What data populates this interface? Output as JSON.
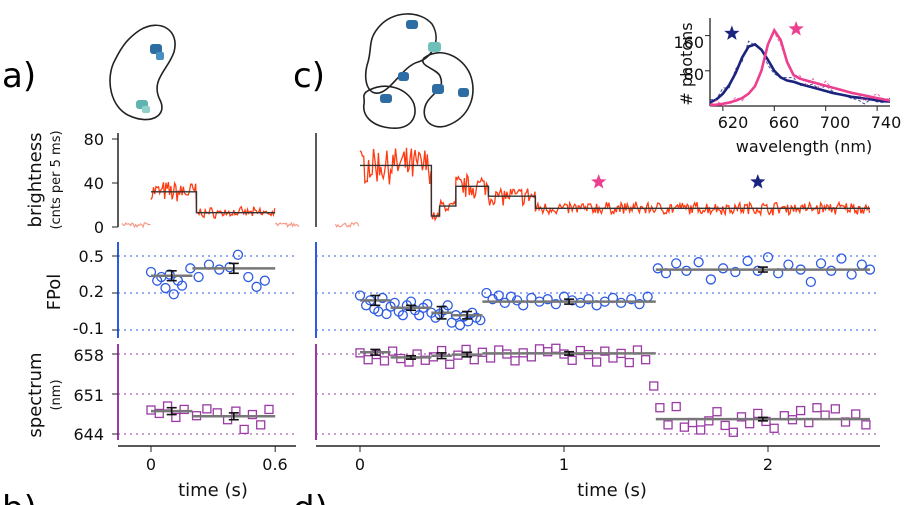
{
  "panel_labels": {
    "a": "a)",
    "b": "b)",
    "c": "c)",
    "d": "d)"
  },
  "colors": {
    "trace": "#ff3b12",
    "trace_faint": "#f59a8a",
    "fit": "#333333",
    "fpol": "#2d5be3",
    "spectrum": "#9b3aa5",
    "inset_blue": "#1a237e",
    "inset_pink": "#ec3f8f",
    "mean": "#777777"
  },
  "chart_data": [
    {
      "type": "line",
      "panel": "brightness",
      "ylabel": "brightness",
      "ylabel_sub": "(cnts per 5 ms)",
      "yticks": [
        "0",
        "40",
        "80"
      ],
      "ylim": [
        0,
        90
      ],
      "segments_a": [
        {
          "x": [
            0.0,
            0.22
          ],
          "y": 32
        },
        {
          "x": [
            0.22,
            0.6
          ],
          "y": 13
        }
      ],
      "segments_c": [
        {
          "x": [
            0.0,
            0.35
          ],
          "y": 56
        },
        {
          "x": [
            0.35,
            0.39
          ],
          "y": 10
        },
        {
          "x": [
            0.39,
            0.47
          ],
          "y": 19
        },
        {
          "x": [
            0.47,
            0.63
          ],
          "y": 37
        },
        {
          "x": [
            0.63,
            0.86
          ],
          "y": 28
        },
        {
          "x": [
            0.86,
            2.5
          ],
          "y": 17
        }
      ],
      "markers": [
        {
          "x": 1.17,
          "color": "inset_pink"
        },
        {
          "x": 1.95,
          "color": "inset_blue"
        }
      ]
    },
    {
      "type": "scatter",
      "panel": "FPol",
      "ylabel": "FPol",
      "yticks": [
        "-0.1",
        "0.2",
        "0.5"
      ],
      "ylim": [
        -0.1,
        0.5
      ],
      "points_a": [
        [
          0.0,
          0.37
        ],
        [
          0.03,
          0.3
        ],
        [
          0.05,
          0.33
        ],
        [
          0.07,
          0.24
        ],
        [
          0.09,
          0.35
        ],
        [
          0.11,
          0.19
        ],
        [
          0.13,
          0.3
        ],
        [
          0.15,
          0.26
        ],
        [
          0.19,
          0.4
        ],
        [
          0.23,
          0.33
        ],
        [
          0.28,
          0.43
        ],
        [
          0.33,
          0.39
        ],
        [
          0.38,
          0.41
        ],
        [
          0.42,
          0.51
        ],
        [
          0.47,
          0.33
        ],
        [
          0.51,
          0.25
        ],
        [
          0.55,
          0.3
        ]
      ],
      "means_a": [
        {
          "x": [
            0.0,
            0.2
          ],
          "y": 0.34,
          "err": 0.04
        },
        {
          "x": [
            0.2,
            0.6
          ],
          "y": 0.4,
          "err": 0.04
        }
      ],
      "points_c": [
        [
          0.0,
          0.18
        ],
        [
          0.03,
          0.1
        ],
        [
          0.05,
          0.14
        ],
        [
          0.07,
          0.07
        ],
        [
          0.09,
          0.05
        ],
        [
          0.11,
          0.16
        ],
        [
          0.13,
          0.03
        ],
        [
          0.15,
          0.09
        ],
        [
          0.17,
          0.12
        ],
        [
          0.19,
          0.05
        ],
        [
          0.21,
          0.02
        ],
        [
          0.23,
          0.1
        ],
        [
          0.25,
          0.13
        ],
        [
          0.27,
          0.06
        ],
        [
          0.29,
          0.02
        ],
        [
          0.31,
          0.08
        ],
        [
          0.33,
          0.11
        ],
        [
          0.35,
          0.04
        ],
        [
          0.37,
          0.0
        ],
        [
          0.39,
          0.03
        ],
        [
          0.41,
          0.06
        ],
        [
          0.43,
          0.1
        ],
        [
          0.45,
          -0.04
        ],
        [
          0.47,
          0.02
        ],
        [
          0.49,
          -0.06
        ],
        [
          0.51,
          0.01
        ],
        [
          0.53,
          -0.03
        ],
        [
          0.55,
          0.04
        ],
        [
          0.57,
          0.0
        ],
        [
          0.59,
          -0.02
        ],
        [
          0.62,
          0.2
        ],
        [
          0.65,
          0.15
        ],
        [
          0.68,
          0.18
        ],
        [
          0.71,
          0.12
        ],
        [
          0.74,
          0.17
        ],
        [
          0.77,
          0.14
        ],
        [
          0.8,
          0.1
        ],
        [
          0.84,
          0.16
        ],
        [
          0.88,
          0.13
        ],
        [
          0.92,
          0.15
        ],
        [
          0.96,
          0.11
        ],
        [
          1.0,
          0.17
        ],
        [
          1.04,
          0.14
        ],
        [
          1.08,
          0.12
        ],
        [
          1.12,
          0.15
        ],
        [
          1.16,
          0.1
        ],
        [
          1.2,
          0.13
        ],
        [
          1.24,
          0.16
        ],
        [
          1.28,
          0.12
        ],
        [
          1.33,
          0.15
        ],
        [
          1.37,
          0.11
        ],
        [
          1.41,
          0.17
        ],
        [
          1.46,
          0.4
        ],
        [
          1.5,
          0.36
        ],
        [
          1.55,
          0.44
        ],
        [
          1.6,
          0.38
        ],
        [
          1.66,
          0.45
        ],
        [
          1.72,
          0.31
        ],
        [
          1.78,
          0.4
        ],
        [
          1.84,
          0.37
        ],
        [
          1.9,
          0.46
        ],
        [
          1.95,
          0.38
        ],
        [
          2.0,
          0.49
        ],
        [
          2.05,
          0.36
        ],
        [
          2.1,
          0.43
        ],
        [
          2.16,
          0.39
        ],
        [
          2.21,
          0.29
        ],
        [
          2.26,
          0.44
        ],
        [
          2.31,
          0.38
        ],
        [
          2.36,
          0.48
        ],
        [
          2.41,
          0.35
        ],
        [
          2.46,
          0.43
        ],
        [
          2.5,
          0.39
        ]
      ],
      "means_c": [
        {
          "x": [
            0.0,
            0.15
          ],
          "y": 0.14,
          "err": 0.04
        },
        {
          "x": [
            0.15,
            0.35
          ],
          "y": 0.08,
          "err": 0.02
        },
        {
          "x": [
            0.35,
            0.45
          ],
          "y": 0.04,
          "err": 0.05
        },
        {
          "x": [
            0.45,
            0.6
          ],
          "y": 0.02,
          "err": 0.03
        },
        {
          "x": [
            0.6,
            1.45
          ],
          "y": 0.13,
          "err": 0.02
        },
        {
          "x": [
            1.45,
            2.5
          ],
          "y": 0.39,
          "err": 0.02
        }
      ]
    },
    {
      "type": "scatter",
      "panel": "spectrum",
      "ylabel": "spectrum",
      "ylabel_sub": "(nm)",
      "yticks": [
        "644",
        "651",
        "658"
      ],
      "ylim": [
        644,
        658
      ],
      "points_a": [
        [
          0.0,
          648.2
        ],
        [
          0.04,
          647.6
        ],
        [
          0.08,
          648.9
        ],
        [
          0.12,
          646.9
        ],
        [
          0.16,
          648.3
        ],
        [
          0.22,
          647.2
        ],
        [
          0.27,
          648.4
        ],
        [
          0.32,
          647.7
        ],
        [
          0.37,
          646.5
        ],
        [
          0.41,
          648.0
        ],
        [
          0.45,
          644.8
        ],
        [
          0.49,
          647.4
        ],
        [
          0.53,
          645.6
        ],
        [
          0.57,
          648.3
        ]
      ],
      "means_a": [
        {
          "x": [
            0.0,
            0.2
          ],
          "y": 648.0,
          "err": 0.6
        },
        {
          "x": [
            0.2,
            0.6
          ],
          "y": 647.1,
          "err": 0.6
        }
      ],
      "points_c": [
        [
          0.0,
          658.2
        ],
        [
          0.04,
          657.0
        ],
        [
          0.08,
          657.9
        ],
        [
          0.12,
          656.8
        ],
        [
          0.16,
          658.5
        ],
        [
          0.2,
          657.2
        ],
        [
          0.24,
          656.6
        ],
        [
          0.28,
          658.0
        ],
        [
          0.32,
          656.9
        ],
        [
          0.36,
          657.5
        ],
        [
          0.4,
          658.6
        ],
        [
          0.44,
          656.2
        ],
        [
          0.48,
          657.8
        ],
        [
          0.52,
          658.8
        ],
        [
          0.56,
          657.0
        ],
        [
          0.6,
          658.3
        ],
        [
          0.64,
          657.3
        ],
        [
          0.68,
          658.7
        ],
        [
          0.72,
          658.0
        ],
        [
          0.76,
          656.8
        ],
        [
          0.8,
          658.2
        ],
        [
          0.84,
          657.5
        ],
        [
          0.88,
          658.9
        ],
        [
          0.92,
          658.4
        ],
        [
          0.96,
          659.0
        ],
        [
          1.0,
          658.0
        ],
        [
          1.04,
          656.9
        ],
        [
          1.08,
          658.6
        ],
        [
          1.12,
          657.9
        ],
        [
          1.16,
          656.6
        ],
        [
          1.2,
          658.5
        ],
        [
          1.24,
          657.3
        ],
        [
          1.28,
          658.1
        ],
        [
          1.32,
          656.5
        ],
        [
          1.36,
          658.7
        ],
        [
          1.4,
          657.0
        ],
        [
          1.44,
          652.4
        ],
        [
          1.47,
          648.6
        ],
        [
          1.51,
          645.6
        ],
        [
          1.55,
          648.8
        ],
        [
          1.59,
          645.2
        ],
        [
          1.63,
          646.0
        ],
        [
          1.67,
          644.7
        ],
        [
          1.71,
          646.3
        ],
        [
          1.75,
          647.9
        ],
        [
          1.79,
          645.5
        ],
        [
          1.83,
          644.3
        ],
        [
          1.87,
          647.0
        ],
        [
          1.91,
          645.8
        ],
        [
          1.95,
          647.6
        ],
        [
          1.99,
          646.2
        ],
        [
          2.03,
          645.0
        ],
        [
          2.08,
          647.2
        ],
        [
          2.12,
          646.5
        ],
        [
          2.16,
          648.1
        ],
        [
          2.2,
          646.0
        ],
        [
          2.24,
          648.6
        ],
        [
          2.28,
          647.3
        ],
        [
          2.33,
          648.4
        ],
        [
          2.38,
          646.1
        ],
        [
          2.43,
          647.5
        ],
        [
          2.48,
          645.6
        ]
      ],
      "means_c": [
        {
          "x": [
            0.0,
            0.15
          ],
          "y": 658.3,
          "err": 0.5
        },
        {
          "x": [
            0.15,
            0.35
          ],
          "y": 657.4,
          "err": 0.3
        },
        {
          "x": [
            0.35,
            0.45
          ],
          "y": 657.7,
          "err": 0.5
        },
        {
          "x": [
            0.45,
            0.6
          ],
          "y": 657.9,
          "err": 0.4
        },
        {
          "x": [
            0.6,
            1.45
          ],
          "y": 658.1,
          "err": 0.3
        },
        {
          "x": [
            1.45,
            2.5
          ],
          "y": 646.6,
          "err": 0.3
        }
      ]
    },
    {
      "type": "line",
      "panel": "inset",
      "xlabel": "wavelength (nm)",
      "ylabel": "# photons",
      "xticks": [
        "620",
        "660",
        "700",
        "740"
      ],
      "yticks": [
        "80",
        "160"
      ],
      "xlim": [
        610,
        750
      ],
      "ylim": [
        0,
        200
      ],
      "series": [
        {
          "color": "inset_blue",
          "x": [
            610,
            615,
            620,
            625,
            630,
            635,
            640,
            645,
            650,
            655,
            660,
            665,
            670,
            675,
            680,
            685,
            690,
            695,
            700,
            705,
            710,
            715,
            720,
            725,
            730,
            735,
            740,
            745,
            750
          ],
          "y": [
            8,
            15,
            28,
            48,
            75,
            110,
            135,
            140,
            128,
            105,
            80,
            65,
            58,
            55,
            50,
            46,
            42,
            38,
            34,
            30,
            27,
            24,
            21,
            19,
            17,
            15,
            13,
            11,
            10
          ]
        },
        {
          "color": "inset_pink",
          "x": [
            610,
            615,
            620,
            625,
            630,
            635,
            640,
            645,
            650,
            655,
            660,
            665,
            670,
            675,
            680,
            685,
            690,
            695,
            700,
            705,
            710,
            715,
            720,
            725,
            730,
            735,
            740,
            745,
            750
          ],
          "y": [
            2,
            3,
            5,
            8,
            12,
            18,
            28,
            45,
            80,
            140,
            172,
            150,
            100,
            70,
            62,
            58,
            54,
            50,
            46,
            42,
            38,
            34,
            30,
            27,
            24,
            21,
            18,
            15,
            12
          ]
        }
      ],
      "markers": [
        {
          "x": 627,
          "y": 165,
          "color": "inset_blue"
        },
        {
          "x": 677,
          "y": 175,
          "color": "inset_pink"
        }
      ]
    }
  ],
  "time_axis_a": {
    "label": "time (s)",
    "ticks": [
      "0",
      "0.6"
    ],
    "xlim": [
      -0.13,
      0.65
    ]
  },
  "time_axis_c": {
    "label": "time (s)",
    "ticks": [
      "0",
      "1",
      "2"
    ],
    "xlim": [
      -0.12,
      2.6
    ]
  }
}
